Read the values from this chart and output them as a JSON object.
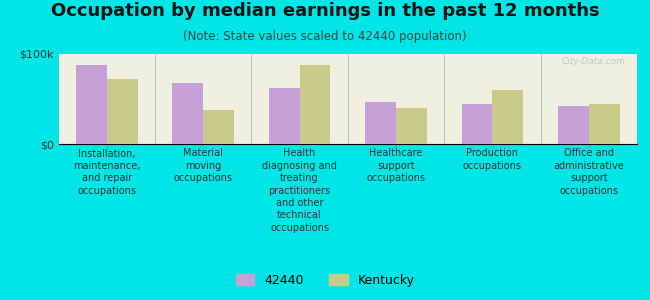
{
  "title": "Occupation by median earnings in the past 12 months",
  "subtitle": "(Note: State values scaled to 42440 population)",
  "categories": [
    "Installation,\nmaintenance,\nand repair\noccupations",
    "Material\nmoving\noccupations",
    "Health\ndiagnosing and\ntreating\npractitioners\nand other\ntechnical\noccupations",
    "Healthcare\nsupport\noccupations",
    "Production\noccupations",
    "Office and\nadministrative\nsupport\noccupations"
  ],
  "values_42440": [
    88000,
    68000,
    62000,
    47000,
    44000,
    42000
  ],
  "values_kentucky": [
    72000,
    38000,
    88000,
    40000,
    60000,
    44000
  ],
  "color_42440": "#c8a0d8",
  "color_kentucky": "#c8cc88",
  "ylim": [
    0,
    100000
  ],
  "yticks": [
    0,
    100000
  ],
  "ytick_labels": [
    "$0",
    "$100k"
  ],
  "background_color": "#f0f0e0",
  "outer_background": "#00e5e5",
  "legend_label_42440": "42440",
  "legend_label_kentucky": "Kentucky",
  "watermark": "City-Data.com",
  "title_fontsize": 13,
  "subtitle_fontsize": 8.5,
  "label_fontsize": 7,
  "ytick_fontsize": 8
}
